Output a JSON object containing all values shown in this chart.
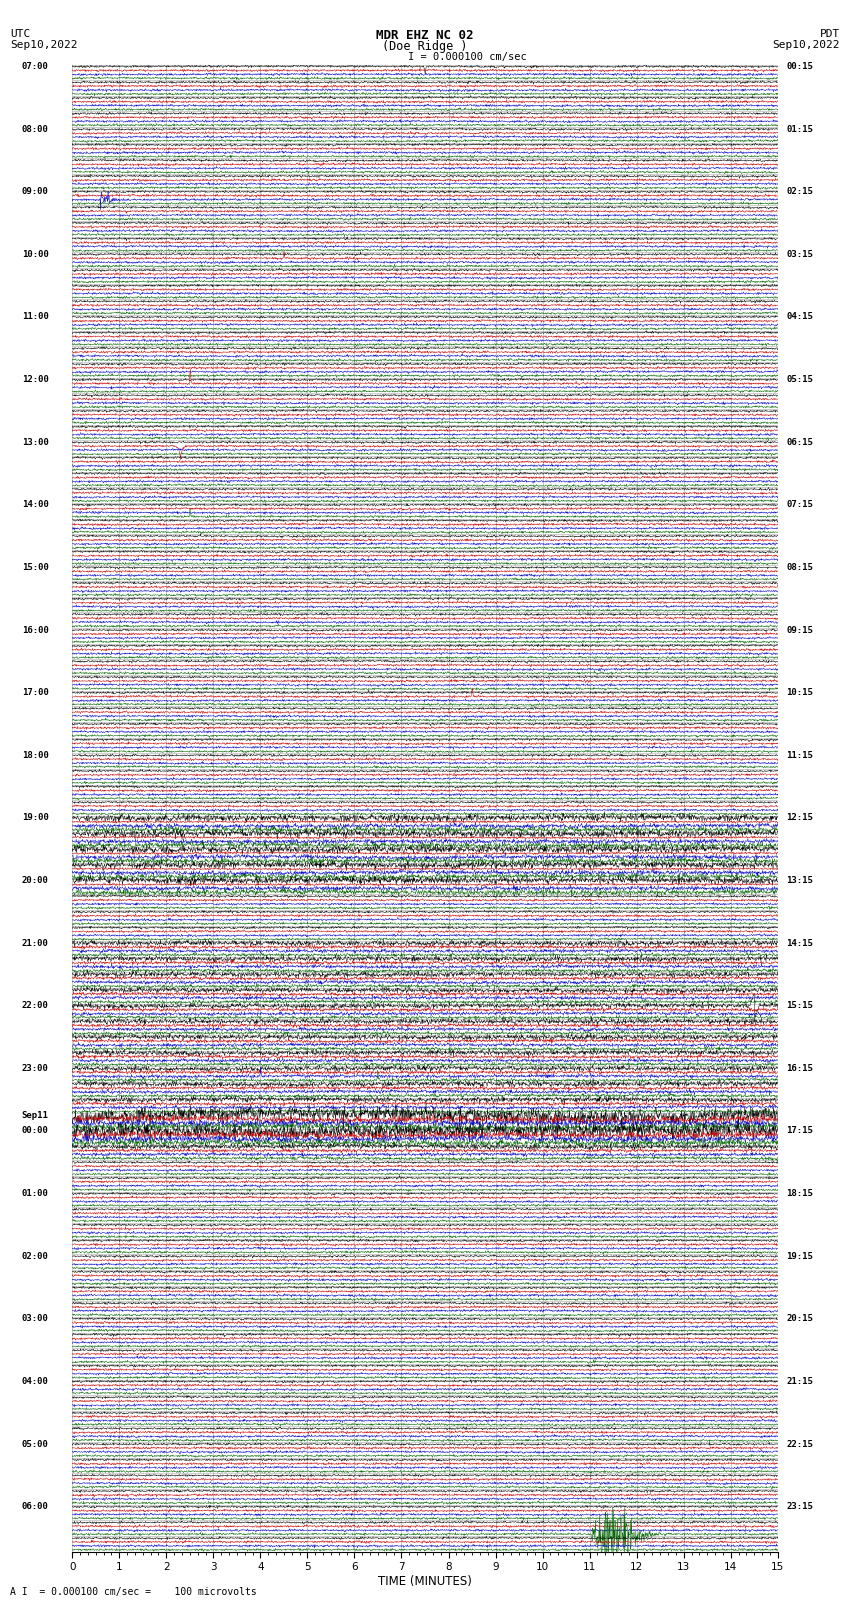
{
  "title_line1": "MDR EHZ NC 02",
  "title_line2": "(Doe Ridge )",
  "scale_text": "I = 0.000100 cm/sec",
  "footer_text": "A I  = 0.000100 cm/sec =    100 microvolts",
  "utc_label": "UTC",
  "utc_date": "Sep10,2022",
  "pdt_label": "PDT",
  "pdt_date": "Sep10,2022",
  "xlabel": "TIME (MINUTES)",
  "bg_color": "#ffffff",
  "trace_colors": [
    "#000000",
    "#cc0000",
    "#0000cc",
    "#006600"
  ],
  "left_times": [
    "07:00",
    "08:00",
    "09:00",
    "10:00",
    "11:00",
    "12:00",
    "13:00",
    "14:00",
    "15:00",
    "16:00",
    "17:00",
    "18:00",
    "19:00",
    "20:00",
    "21:00",
    "22:00",
    "23:00",
    "Sep11",
    "00:00",
    "01:00",
    "02:00",
    "03:00",
    "04:00",
    "05:00",
    "06:00"
  ],
  "left_time_rows": [
    0,
    4,
    8,
    12,
    16,
    20,
    24,
    28,
    32,
    36,
    40,
    44,
    48,
    52,
    56,
    60,
    64,
    67,
    68,
    72,
    76,
    80,
    84,
    88,
    92
  ],
  "right_times": [
    "00:15",
    "01:15",
    "02:15",
    "03:15",
    "04:15",
    "05:15",
    "06:15",
    "07:15",
    "08:15",
    "09:15",
    "10:15",
    "11:15",
    "12:15",
    "13:15",
    "14:15",
    "15:15",
    "16:15",
    "17:15",
    "18:15",
    "19:15",
    "20:15",
    "21:15",
    "22:15",
    "23:15"
  ],
  "right_time_rows": [
    0,
    4,
    8,
    12,
    16,
    20,
    24,
    28,
    32,
    36,
    40,
    44,
    48,
    52,
    56,
    60,
    64,
    68,
    72,
    76,
    80,
    84,
    88,
    92
  ],
  "n_rows": 95,
  "minutes": 15,
  "n_pts": 1800,
  "grid_color": "#aaaaaa",
  "grid_linewidth": 0.4
}
